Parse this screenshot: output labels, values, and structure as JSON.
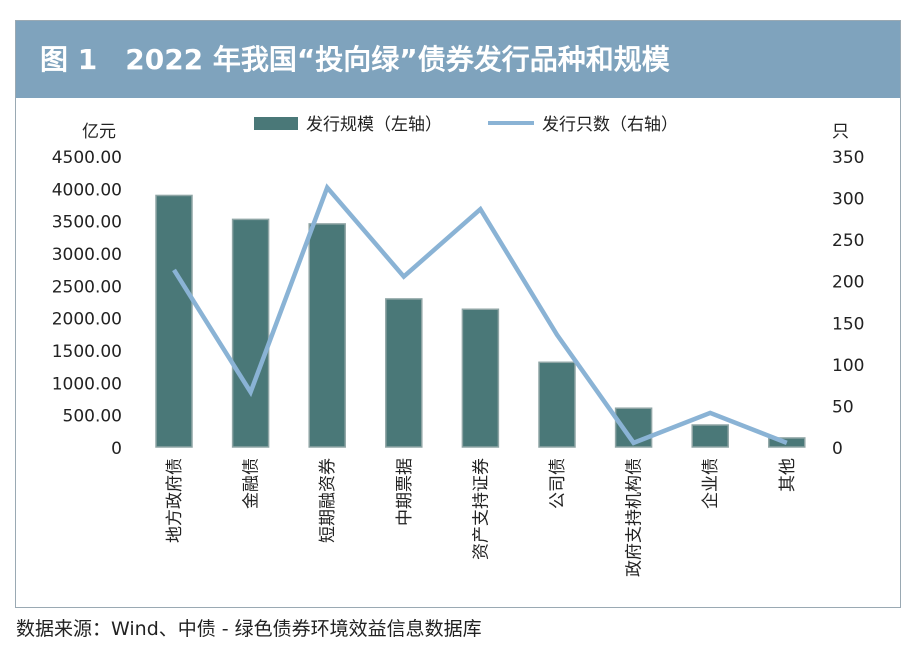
{
  "title": "图 1　2022 年我国“投向绿”债券发行品种和规模",
  "source": "数据来源：Wind、中债 - 绿色债券环境效益信息数据库",
  "chart_data": {
    "type": "bar",
    "categories": [
      "地方政府债",
      "金融债",
      "短期融资券",
      "中期票据",
      "资产支持证券",
      "公司债",
      "政府支持机构债",
      "企业债",
      "其他"
    ],
    "series": [
      {
        "name": "发行规模（左轴）",
        "type": "bar",
        "axis": "left",
        "color": "#4a7878",
        "values": [
          3890,
          3520,
          3450,
          2290,
          2130,
          1310,
          600,
          340,
          140
        ]
      },
      {
        "name": "发行只数（右轴）",
        "type": "line",
        "axis": "right",
        "color": "#8ab3d5",
        "values": [
          213,
          66,
          312,
          205,
          286,
          135,
          5,
          41,
          5
        ]
      }
    ],
    "ylabel": "亿元",
    "y2label": "只",
    "ylim": [
      0,
      4500
    ],
    "y2lim": [
      0,
      350
    ],
    "yticks": [
      "0",
      "500.00",
      "1000.00",
      "1500.00",
      "2000.00",
      "2500.00",
      "3000.00",
      "3500.00",
      "4000.00",
      "4500.00"
    ],
    "y2ticks": [
      "0",
      "50",
      "100",
      "150",
      "200",
      "250",
      "300",
      "350"
    ],
    "legend": "top-center",
    "grid": false
  }
}
